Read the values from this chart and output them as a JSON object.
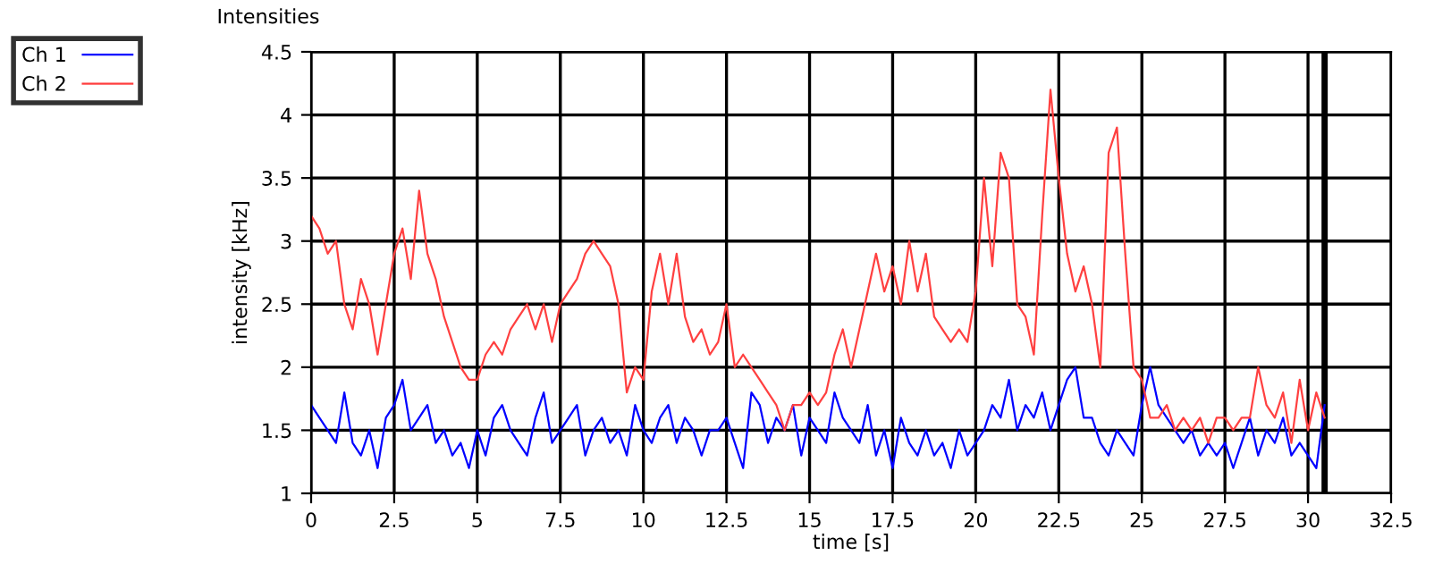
{
  "chart_data": {
    "type": "line",
    "title": "Intensities",
    "xlabel": "time [s]",
    "ylabel": "intensity [kHz]",
    "x": [
      0,
      0.25,
      0.5,
      0.75,
      1,
      1.25,
      1.5,
      1.75,
      2,
      2.25,
      2.5,
      2.75,
      3,
      3.25,
      3.5,
      3.75,
      4,
      4.25,
      4.5,
      4.75,
      5,
      5.25,
      5.5,
      5.75,
      6,
      6.25,
      6.5,
      6.75,
      7,
      7.25,
      7.5,
      7.75,
      8,
      8.25,
      8.5,
      8.75,
      9,
      9.25,
      9.5,
      9.75,
      10,
      10.25,
      10.5,
      10.75,
      11,
      11.25,
      11.5,
      11.75,
      12,
      12.25,
      12.5,
      12.75,
      13,
      13.25,
      13.5,
      13.75,
      14,
      14.25,
      14.5,
      14.75,
      15,
      15.25,
      15.5,
      15.75,
      16,
      16.25,
      16.5,
      16.75,
      17,
      17.25,
      17.5,
      17.75,
      18,
      18.25,
      18.5,
      18.75,
      19,
      19.25,
      19.5,
      19.75,
      20,
      20.25,
      20.5,
      20.75,
      21,
      21.25,
      21.5,
      21.75,
      22,
      22.25,
      22.5,
      22.75,
      23,
      23.25,
      23.5,
      23.75,
      24,
      24.25,
      24.5,
      24.75,
      25,
      25.25,
      25.5,
      25.75,
      26,
      26.25,
      26.5,
      26.75,
      27,
      27.25,
      27.5,
      27.75,
      28,
      28.25,
      28.5,
      28.75,
      29,
      29.25,
      29.5,
      29.75,
      30,
      30.25,
      30.5
    ],
    "series": [
      {
        "name": "Ch 1",
        "color": "#0000ff",
        "values": [
          1.7,
          1.6,
          1.5,
          1.4,
          1.8,
          1.4,
          1.3,
          1.5,
          1.2,
          1.6,
          1.7,
          1.9,
          1.5,
          1.6,
          1.7,
          1.4,
          1.5,
          1.3,
          1.4,
          1.2,
          1.5,
          1.3,
          1.6,
          1.7,
          1.5,
          1.4,
          1.3,
          1.6,
          1.8,
          1.4,
          1.5,
          1.6,
          1.7,
          1.3,
          1.5,
          1.6,
          1.4,
          1.5,
          1.3,
          1.7,
          1.5,
          1.4,
          1.6,
          1.7,
          1.4,
          1.6,
          1.5,
          1.3,
          1.5,
          1.5,
          1.6,
          1.4,
          1.2,
          1.8,
          1.7,
          1.4,
          1.6,
          1.5,
          1.7,
          1.3,
          1.6,
          1.5,
          1.4,
          1.8,
          1.6,
          1.5,
          1.4,
          1.7,
          1.3,
          1.5,
          1.2,
          1.6,
          1.4,
          1.3,
          1.5,
          1.3,
          1.4,
          1.2,
          1.5,
          1.3,
          1.4,
          1.5,
          1.7,
          1.6,
          1.9,
          1.5,
          1.7,
          1.6,
          1.8,
          1.5,
          1.7,
          1.9,
          2.0,
          1.6,
          1.6,
          1.4,
          1.3,
          1.5,
          1.4,
          1.3,
          1.7,
          2.0,
          1.7,
          1.6,
          1.5,
          1.4,
          1.5,
          1.3,
          1.4,
          1.3,
          1.4,
          1.2,
          1.4,
          1.6,
          1.3,
          1.5,
          1.4,
          1.6,
          1.3,
          1.4,
          1.3,
          1.2,
          1.7
        ]
      },
      {
        "name": "Ch 2",
        "color": "#ff4040",
        "values": [
          3.2,
          3.1,
          2.9,
          3.0,
          2.5,
          2.3,
          2.7,
          2.5,
          2.1,
          2.5,
          2.9,
          3.1,
          2.7,
          3.4,
          2.9,
          2.7,
          2.4,
          2.2,
          2.0,
          1.9,
          1.9,
          2.1,
          2.2,
          2.1,
          2.3,
          2.4,
          2.5,
          2.3,
          2.5,
          2.2,
          2.5,
          2.6,
          2.7,
          2.9,
          3.0,
          2.9,
          2.8,
          2.5,
          1.8,
          2.0,
          1.9,
          2.6,
          2.9,
          2.5,
          2.9,
          2.4,
          2.2,
          2.3,
          2.1,
          2.2,
          2.5,
          2.0,
          2.1,
          2.0,
          1.9,
          1.8,
          1.7,
          1.5,
          1.7,
          1.7,
          1.8,
          1.7,
          1.8,
          2.1,
          2.3,
          2.0,
          2.3,
          2.6,
          2.9,
          2.6,
          2.8,
          2.5,
          3.0,
          2.6,
          2.9,
          2.4,
          2.3,
          2.2,
          2.3,
          2.2,
          2.6,
          3.5,
          2.8,
          3.7,
          3.5,
          2.5,
          2.4,
          2.1,
          3.2,
          4.2,
          3.5,
          2.9,
          2.6,
          2.8,
          2.5,
          2.0,
          3.7,
          3.9,
          2.9,
          2.0,
          1.9,
          1.6,
          1.6,
          1.7,
          1.5,
          1.6,
          1.5,
          1.6,
          1.4,
          1.6,
          1.6,
          1.5,
          1.6,
          1.6,
          2.0,
          1.7,
          1.6,
          1.8,
          1.4,
          1.9,
          1.5,
          1.8,
          1.6
        ]
      }
    ],
    "xlim": [
      0,
      32.5
    ],
    "xticks": [
      0,
      2.5,
      5,
      7.5,
      10,
      12.5,
      15,
      17.5,
      20,
      22.5,
      25,
      27.5,
      30,
      32.5
    ],
    "ylim": [
      1,
      4.5
    ],
    "yticks": [
      1,
      1.5,
      2,
      2.5,
      3,
      3.5,
      4,
      4.5
    ],
    "ref_lines": [
      {
        "axis": "x",
        "value": 30.5,
        "color": "#000000"
      }
    ],
    "grid": true,
    "legend": "top left",
    "marker": "none",
    "line_style": "solid"
  }
}
